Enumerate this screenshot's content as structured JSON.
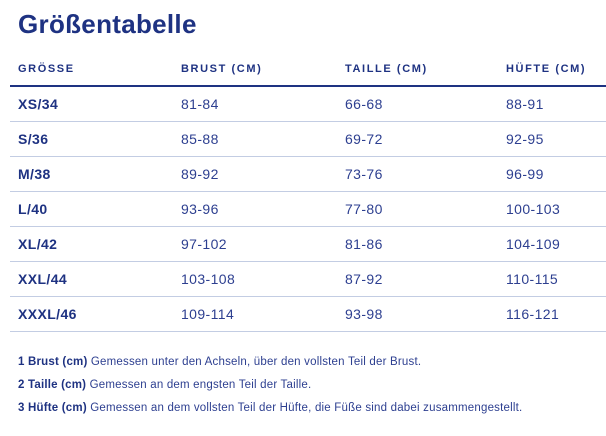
{
  "page": {
    "title": "Größentabelle"
  },
  "colors": {
    "navy": "#1e3282",
    "text_blue": "#2d3f90",
    "row_line": "#c3cde3",
    "header_line": "#1e3282",
    "background": "#ffffff"
  },
  "table": {
    "headers": [
      "GRÖSSE",
      "BRUST (CM)",
      "TAILLE (CM)",
      "HÜFTE (CM)"
    ],
    "rows": [
      {
        "size": "XS/34",
        "brust": "81-84",
        "taille": "66-68",
        "huefte": "88-91"
      },
      {
        "size": "S/36",
        "brust": "85-88",
        "taille": "69-72",
        "huefte": "92-95"
      },
      {
        "size": "M/38",
        "brust": "89-92",
        "taille": "73-76",
        "huefte": "96-99"
      },
      {
        "size": "L/40",
        "brust": "93-96",
        "taille": "77-80",
        "huefte": "100-103"
      },
      {
        "size": "XL/42",
        "brust": "97-102",
        "taille": "81-86",
        "huefte": "104-109"
      },
      {
        "size": "XXL/44",
        "brust": "103-108",
        "taille": "87-92",
        "huefte": "110-115"
      },
      {
        "size": "XXXL/46",
        "brust": "109-114",
        "taille": "93-98",
        "huefte": "116-121"
      }
    ]
  },
  "footnotes": [
    {
      "label": "1 Brust (cm)",
      "text": "Gemessen unter den Achseln, über den vollsten Teil der Brust."
    },
    {
      "label": "2 Taille (cm)",
      "text": "Gemessen an dem engsten Teil der Taille."
    },
    {
      "label": "3 Hüfte (cm)",
      "text": "Gemessen an dem vollsten Teil der Hüfte, die Füße sind dabei zusammengestellt."
    }
  ]
}
